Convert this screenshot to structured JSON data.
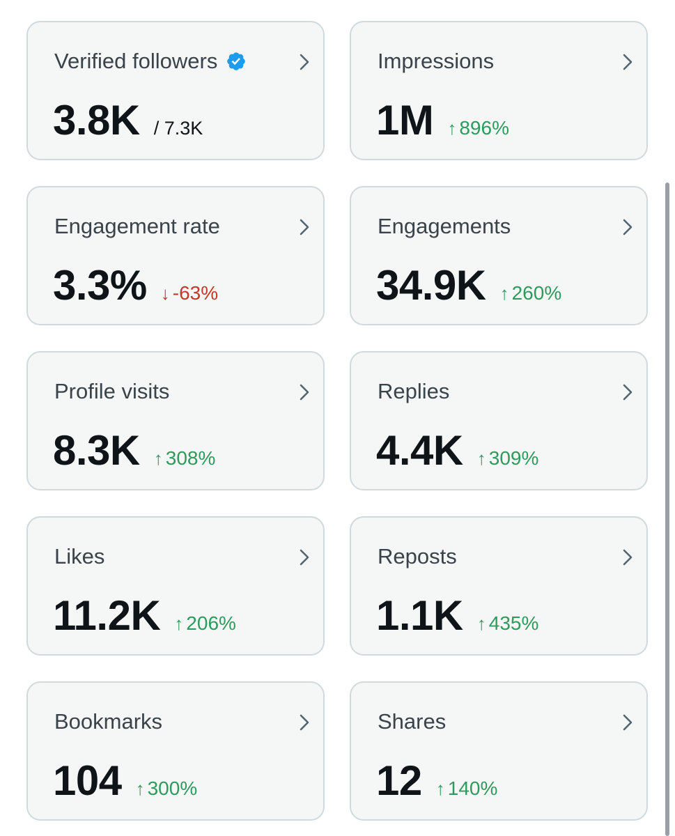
{
  "cards": [
    {
      "title": "Verified followers",
      "value": "3.8K",
      "total": "/ 7.3K",
      "verified": true
    },
    {
      "title": "Impressions",
      "value": "1M",
      "change": "896%",
      "direction": "up",
      "arrow": "↑"
    },
    {
      "title": "Engagement rate",
      "value": "3.3%",
      "change": "-63%",
      "direction": "down",
      "arrow": "↓"
    },
    {
      "title": "Engagements",
      "value": "34.9K",
      "change": "260%",
      "direction": "up",
      "arrow": "↑"
    },
    {
      "title": "Profile visits",
      "value": "8.3K",
      "change": "308%",
      "direction": "up",
      "arrow": "↑"
    },
    {
      "title": "Replies",
      "value": "4.4K",
      "change": "309%",
      "direction": "up",
      "arrow": "↑"
    },
    {
      "title": "Likes",
      "value": "11.2K",
      "change": "206%",
      "direction": "up",
      "arrow": "↑"
    },
    {
      "title": "Reposts",
      "value": "1.1K",
      "change": "435%",
      "direction": "up",
      "arrow": "↑"
    },
    {
      "title": "Bookmarks",
      "value": "104",
      "change": "300%",
      "direction": "up",
      "arrow": "↑"
    },
    {
      "title": "Shares",
      "value": "12",
      "change": "140%",
      "direction": "up",
      "arrow": "↑"
    }
  ],
  "colors": {
    "up": "#2e9a5b",
    "down": "#c0392b",
    "verified": "#1d9bf0",
    "card_bg": "#f5f7f7",
    "card_border": "#cfd9de"
  }
}
